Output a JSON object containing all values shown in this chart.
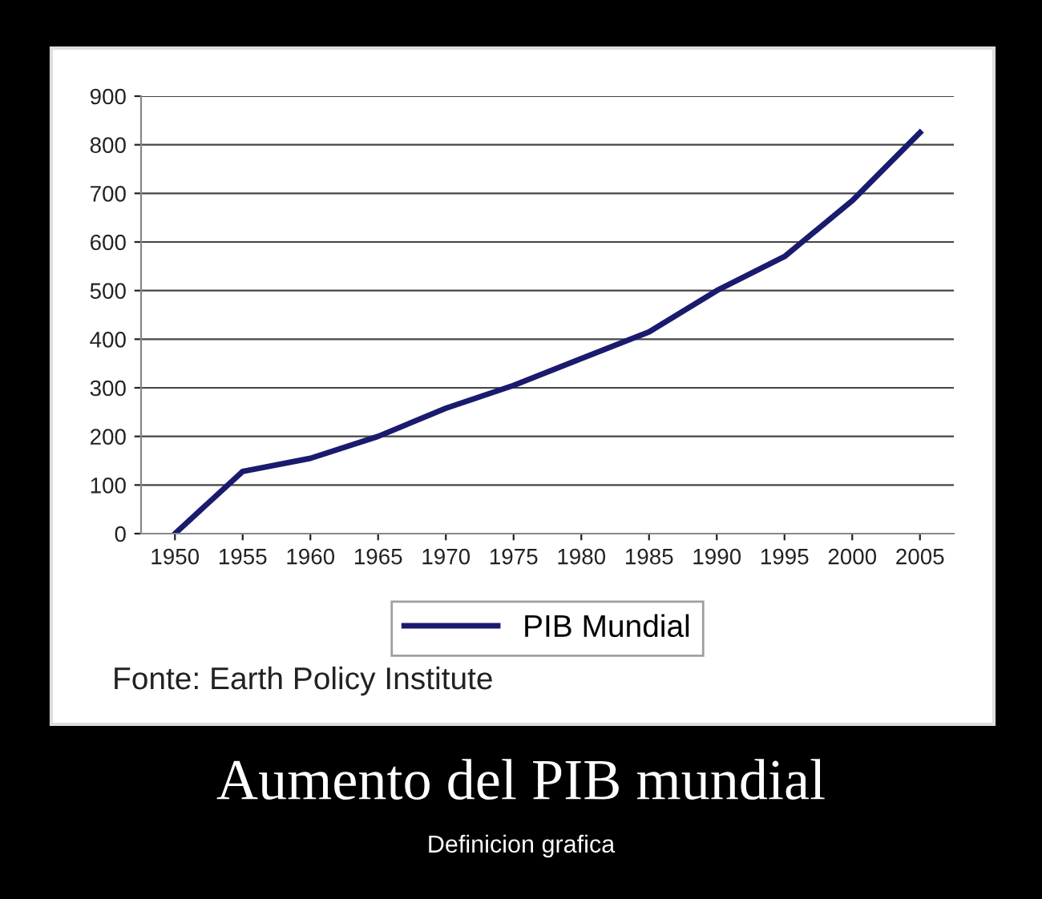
{
  "chart_data": {
    "type": "line",
    "title": "Aumento del PIB mundial",
    "subtitle": "Definicion grafica",
    "categories": [
      "1950",
      "1955",
      "1960",
      "1965",
      "1970",
      "1975",
      "1980",
      "1985",
      "1990",
      "1995",
      "2000",
      "2005"
    ],
    "series": [
      {
        "name": "PIB Mundial",
        "color": "#1a1a6e",
        "values": [
          0,
          128,
          155,
          200,
          258,
          305,
          360,
          415,
          500,
          570,
          685,
          825
        ]
      }
    ],
    "ylim": [
      0,
      900
    ],
    "yticks": [
      0,
      100,
      200,
      300,
      400,
      500,
      600,
      700,
      800,
      900
    ],
    "grid": "y",
    "legend": "bottom",
    "marker": "none",
    "line_style": "solid",
    "annotations": [
      "Fonte: Earth Policy Institute"
    ]
  }
}
